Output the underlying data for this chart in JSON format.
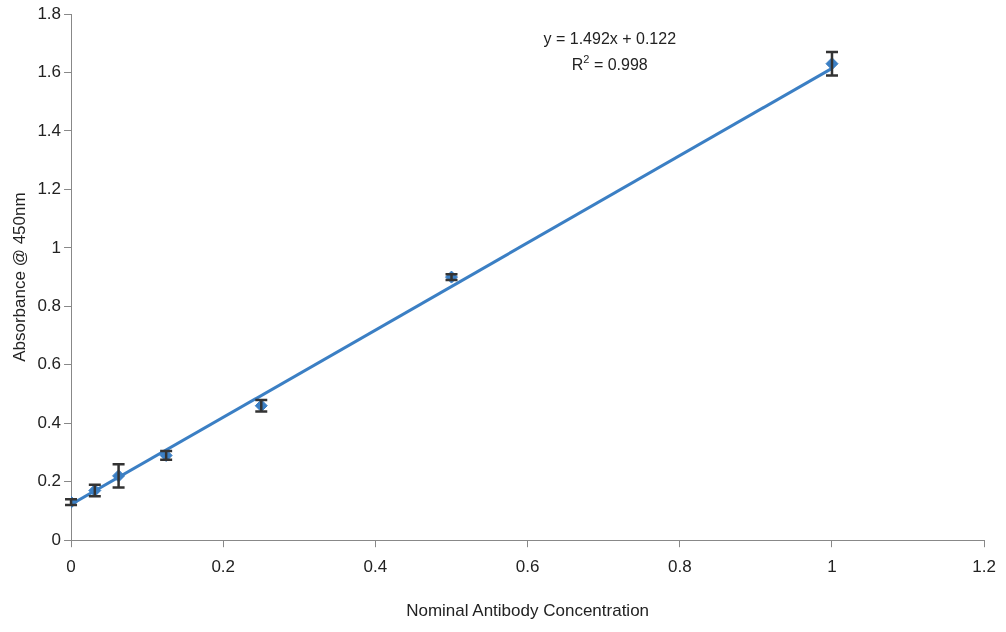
{
  "chart_data": {
    "type": "scatter",
    "xlabel": "Nominal Antibody Concentration",
    "ylabel": "Absorbance @ 450nm",
    "xlim": [
      0,
      1.2
    ],
    "xticks": [
      0,
      0.2,
      0.4,
      0.6,
      0.8,
      1,
      1.2
    ],
    "ylim": [
      0,
      1.8
    ],
    "yticks": [
      0,
      0.2,
      0.4,
      0.6,
      0.8,
      1,
      1.2,
      1.4,
      1.6,
      1.8
    ],
    "grid": false,
    "legend": false,
    "marker": "diamond",
    "series": [
      {
        "type": "scatter",
        "color": "#3b7fc4",
        "x": [
          0,
          0.03125,
          0.0625,
          0.125,
          0.25,
          0.5,
          1
        ],
        "values": [
          0.13,
          0.17,
          0.22,
          0.29,
          0.46,
          0.9,
          1.63
        ],
        "errors": [
          0.01,
          0.02,
          0.04,
          0.015,
          0.02,
          0.01,
          0.04
        ]
      },
      {
        "type": "line",
        "color": "#3b7fc4",
        "x": [
          0,
          1
        ],
        "values": [
          0.122,
          1.614
        ],
        "line_style": "solid",
        "marker": "none"
      }
    ],
    "annotations": [
      "y = 1.492x + 0.122",
      "R$^{2}$ = 0.998"
    ]
  }
}
